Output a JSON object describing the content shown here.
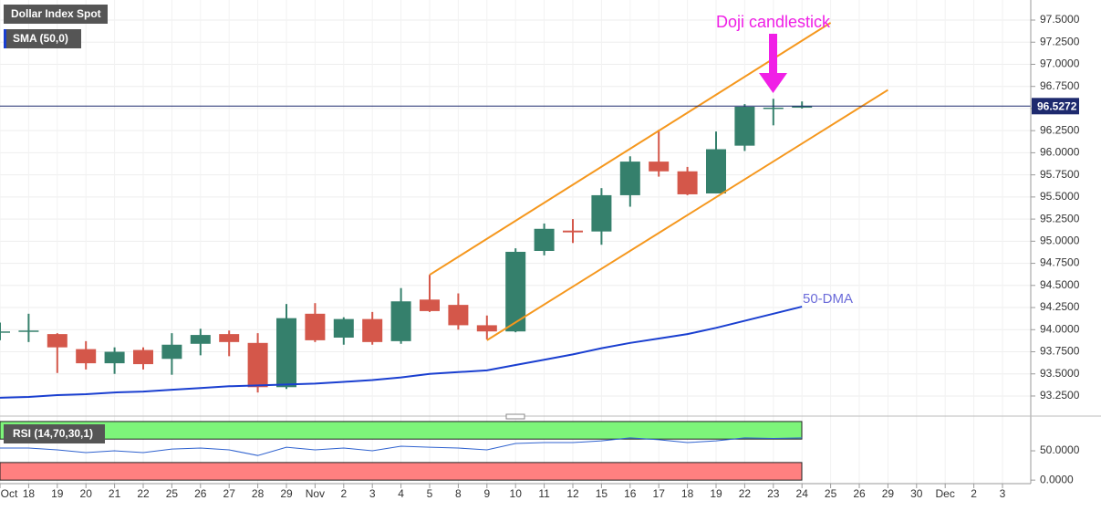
{
  "chart_data": [
    {
      "type": "candlestick",
      "title": "Dollar Index Spot",
      "categories": [
        "Oct",
        "18",
        "19",
        "20",
        "21",
        "22",
        "25",
        "26",
        "27",
        "28",
        "29",
        "Nov",
        "2",
        "3",
        "4",
        "5",
        "8",
        "9",
        "10",
        "11",
        "12",
        "15",
        "16",
        "17",
        "18",
        "19",
        "22",
        "23",
        "24",
        "25",
        "26",
        "29",
        "30",
        "Dec",
        "2",
        "3"
      ],
      "series": [
        {
          "name": "Dollar Index Spot",
          "up_color": "#35806c",
          "down_color": "#d4574a",
          "open": [
            93.97,
            93.98,
            93.95,
            93.78,
            93.62,
            93.77,
            93.67,
            93.84,
            93.95,
            93.85,
            93.35,
            94.18,
            93.91,
            94.12,
            93.87,
            94.34,
            94.28,
            94.05,
            93.98,
            94.89,
            95.12,
            95.11,
            95.52,
            95.9,
            95.79,
            95.54,
            96.08,
            96.5,
            96.51,
            null,
            null,
            null,
            null,
            null,
            null,
            null
          ],
          "high": [
            94.08,
            94.18,
            93.96,
            93.87,
            93.8,
            93.8,
            93.96,
            94.01,
            93.99,
            93.96,
            94.29,
            94.3,
            94.14,
            94.2,
            94.47,
            94.62,
            94.41,
            94.16,
            94.92,
            95.2,
            95.25,
            95.6,
            95.96,
            96.26,
            95.84,
            96.24,
            96.55,
            96.61,
            96.58,
            null,
            null,
            null,
            null,
            null,
            null,
            null
          ],
          "low": [
            93.88,
            93.86,
            93.51,
            93.55,
            93.5,
            93.55,
            93.49,
            93.71,
            93.7,
            93.29,
            93.33,
            93.86,
            93.83,
            93.83,
            93.84,
            94.2,
            94.0,
            93.89,
            93.97,
            94.84,
            94.98,
            94.96,
            95.39,
            95.73,
            95.52,
            95.54,
            96.02,
            96.31,
            96.5,
            null,
            null,
            null,
            null,
            null,
            null,
            null
          ],
          "close": [
            93.98,
            93.99,
            93.8,
            93.62,
            93.75,
            93.61,
            93.83,
            93.94,
            93.86,
            93.35,
            94.13,
            93.88,
            94.12,
            93.86,
            94.32,
            94.21,
            94.05,
            93.98,
            94.88,
            95.14,
            95.1,
            95.52,
            95.9,
            95.79,
            95.53,
            96.04,
            96.52,
            96.51,
            96.53,
            null,
            null,
            null,
            null,
            null,
            null,
            null
          ]
        },
        {
          "name": "SMA (50,0)",
          "type": "line",
          "color": "#1a3fd0",
          "values": [
            93.23,
            93.24,
            93.26,
            93.27,
            93.29,
            93.3,
            93.32,
            93.34,
            93.36,
            93.37,
            93.38,
            93.39,
            93.41,
            93.43,
            93.46,
            93.5,
            93.52,
            93.54,
            93.6,
            93.66,
            93.72,
            93.79,
            93.85,
            93.9,
            93.95,
            94.02,
            94.1,
            94.18,
            94.26,
            null,
            null,
            null,
            null,
            null,
            null,
            null
          ]
        }
      ],
      "trendlines": [
        {
          "color": "#f5971d",
          "x": [
            15,
            29
          ],
          "y": [
            94.62,
            97.47
          ]
        },
        {
          "color": "#f5971d",
          "x": [
            17,
            31
          ],
          "y": [
            93.88,
            96.71
          ]
        }
      ],
      "last_price": 96.5272,
      "annotations": [
        "Doji candlestick",
        "50-DMA"
      ],
      "ylim": [
        93.064,
        97.727
      ],
      "yticks": [
        {
          "value": 93.25,
          "label": "93.2500"
        },
        {
          "value": 93.5,
          "label": "93.5000"
        },
        {
          "value": 93.75,
          "label": "93.7500"
        },
        {
          "value": 94,
          "label": "94.0000"
        },
        {
          "value": 94.25,
          "label": "94.2500"
        },
        {
          "value": 94.5,
          "label": "94.5000"
        },
        {
          "value": 94.75,
          "label": "94.7500"
        },
        {
          "value": 95,
          "label": "95.0000"
        },
        {
          "value": 95.25,
          "label": "95.2500"
        },
        {
          "value": 95.5,
          "label": "95.5000"
        },
        {
          "value": 95.75,
          "label": "95.7500"
        },
        {
          "value": 96,
          "label": "96.0000"
        },
        {
          "value": 96.25,
          "label": "96.2500"
        },
        {
          "value": 96.5,
          "label": "96.5000"
        },
        {
          "value": 96.75,
          "label": "96.7500"
        },
        {
          "value": 97,
          "label": "97.0000"
        },
        {
          "value": 97.25,
          "label": "97.2500"
        },
        {
          "value": 97.5,
          "label": "97.5000"
        }
      ],
      "grid": true
    },
    {
      "type": "line",
      "title": "RSI (14,70,30,1)",
      "series": [
        {
          "name": "RSI",
          "color": "#2f62cf",
          "values": [
            54.7,
            54.7,
            51.6,
            46.9,
            50,
            46.9,
            53,
            54.7,
            51.6,
            42,
            56,
            51.6,
            54.7,
            50,
            57.8,
            56,
            54.7,
            51.6,
            62.5,
            64,
            64,
            67,
            72,
            69,
            64,
            67,
            72,
            71,
            72,
            null,
            null,
            null,
            null,
            null,
            null,
            null
          ]
        }
      ],
      "zones": [
        {
          "from": 70,
          "to": 100,
          "color": "#7df57a"
        },
        {
          "from": 0,
          "to": 30,
          "color": "#ff8080"
        }
      ],
      "ylim": [
        -6,
        103
      ],
      "yticks": [
        {
          "value": 50,
          "label": "50.0000"
        },
        {
          "value": 0,
          "label": "0.0000"
        }
      ]
    }
  ]
}
